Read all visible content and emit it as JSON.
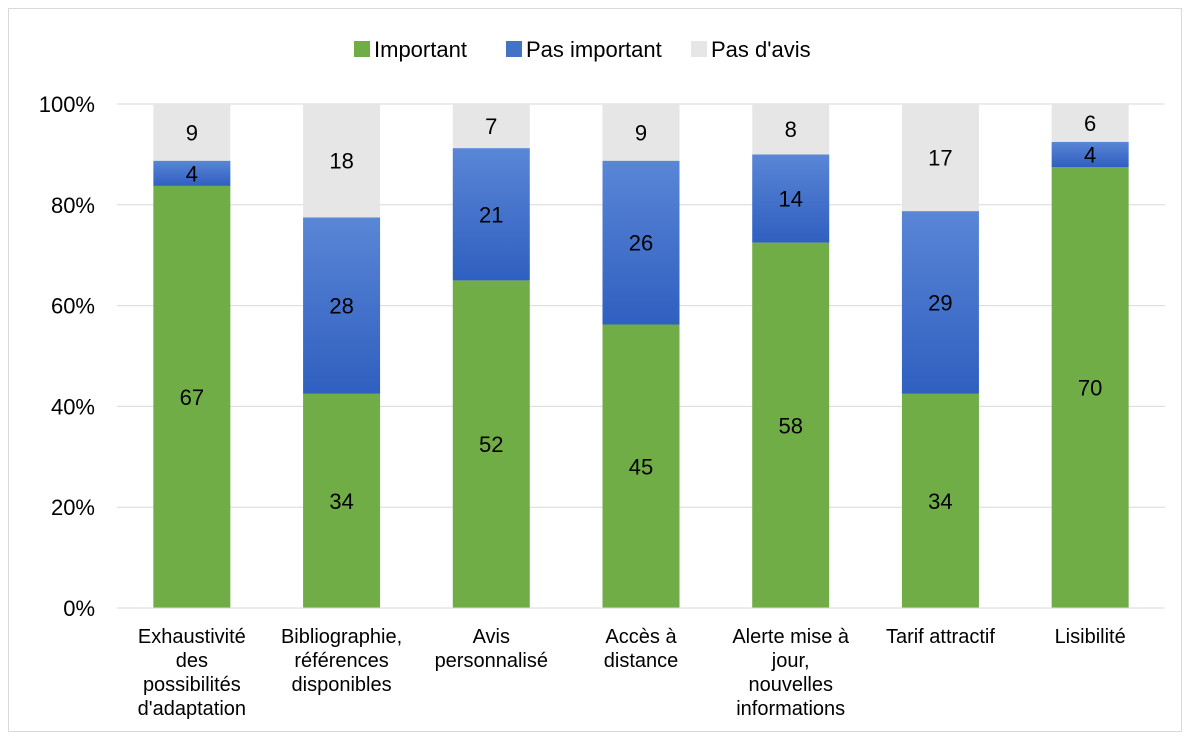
{
  "chart_data": {
    "type": "bar",
    "stacked": true,
    "percent_stacked": true,
    "categories": [
      "Exhaustivité des possibilités d'adaptation",
      "Bibliographie, références disponibles",
      "Avis personnalisé",
      "Accès à distance",
      "Alerte mise à jour, nouvelles informations",
      "Tarif attractif",
      "Lisibilité"
    ],
    "category_lines": [
      [
        "Exhaustivité",
        "des",
        "possibilités",
        "d'adaptation"
      ],
      [
        "Bibliographie,",
        "références",
        "disponibles"
      ],
      [
        "Avis",
        "personnalisé"
      ],
      [
        "Accès à",
        "distance"
      ],
      [
        "Alerte mise à",
        "jour,",
        "nouvelles",
        "informations"
      ],
      [
        "Tarif attractif"
      ],
      [
        "Lisibilité"
      ]
    ],
    "series": [
      {
        "name": "Important",
        "color": "#70ad47",
        "values": [
          67,
          34,
          52,
          45,
          58,
          34,
          70
        ]
      },
      {
        "name": "Pas important",
        "color": "#4472c4",
        "values": [
          4,
          28,
          21,
          26,
          14,
          29,
          4
        ]
      },
      {
        "name": "Pas d'avis",
        "color": "#e7e6e6",
        "values": [
          9,
          18,
          7,
          9,
          8,
          17,
          6
        ]
      }
    ],
    "y_ticks": [
      "0%",
      "20%",
      "40%",
      "60%",
      "80%",
      "100%"
    ],
    "ylim": [
      0,
      100
    ],
    "grid": true,
    "legend_position": "top"
  }
}
